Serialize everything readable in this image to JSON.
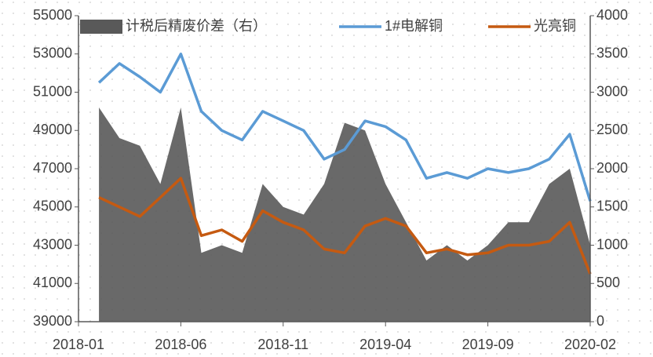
{
  "chart_data": {
    "type": "line",
    "x": [
      "2018-02",
      "2018-03",
      "2018-04",
      "2018-05",
      "2018-06",
      "2018-07",
      "2018-08",
      "2018-09",
      "2018-10",
      "2018-11",
      "2018-12",
      "2019-01",
      "2019-02",
      "2019-03",
      "2019-04",
      "2019-05",
      "2019-06",
      "2019-07",
      "2019-08",
      "2019-09",
      "2019-10",
      "2019-11",
      "2019-12",
      "2020-01",
      "2020-02"
    ],
    "series": [
      {
        "name": "计税后精废价差（右）",
        "color": "#595959",
        "type": "area",
        "axis": "y2",
        "values": [
          2800,
          2400,
          2300,
          1800,
          2800,
          900,
          1000,
          900,
          1800,
          1500,
          1400,
          1800,
          2600,
          2500,
          1800,
          1300,
          800,
          1000,
          800,
          1000,
          1300,
          1300,
          1800,
          2000,
          1000
        ]
      },
      {
        "name": "1#电解铜",
        "color": "#5b9bd5",
        "values": [
          51500,
          52500,
          51800,
          51000,
          53000,
          50000,
          49000,
          48500,
          50000,
          49500,
          49000,
          47500,
          48000,
          49500,
          49200,
          48500,
          46500,
          46800,
          46500,
          47000,
          46800,
          47000,
          47500,
          48800,
          45300
        ]
      },
      {
        "name": "光亮铜",
        "color": "#c55a11",
        "values": [
          45500,
          45000,
          44500,
          45500,
          46500,
          43500,
          43800,
          43200,
          44800,
          44200,
          43800,
          42800,
          42600,
          44000,
          44400,
          44000,
          42600,
          42800,
          42500,
          42600,
          43000,
          43000,
          43200,
          44200,
          41500
        ]
      }
    ],
    "xlim": [
      "2018-01",
      "2020-02"
    ],
    "xticks": [
      "2018-01",
      "2018-06",
      "2018-11",
      "2019-04",
      "2019-09",
      "2020-02"
    ],
    "ylim": [
      39000,
      55000
    ],
    "yticks": [
      39000,
      41000,
      43000,
      45000,
      47000,
      49000,
      51000,
      53000,
      55000
    ],
    "y2lim": [
      0,
      4000
    ],
    "y2ticks": [
      0,
      500,
      1000,
      1500,
      2000,
      2500,
      3000,
      3500,
      4000
    ],
    "grid": false,
    "legend": "top"
  }
}
